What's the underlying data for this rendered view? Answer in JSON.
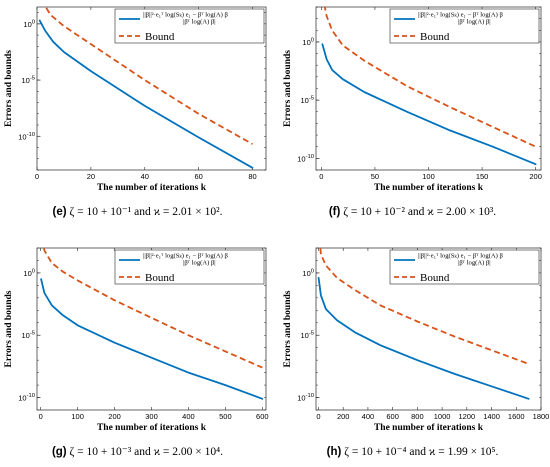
{
  "chart_data": [
    {
      "type": "line",
      "panel": "(e)",
      "caption_label": "(e)",
      "caption_text": "ζ = 10 + 10⁻¹ and ϰ = 2.01 × 10².",
      "xlabel": "The number of iterations k",
      "ylabel": "Errors and bounds",
      "xlim": [
        0,
        85
      ],
      "xticks": [
        0,
        20,
        40,
        60,
        80
      ],
      "ylim_log10": [
        -13,
        1.5
      ],
      "yscale": "log",
      "yticks_log10": [
        0,
        -5,
        -10
      ],
      "ytick_labels": [
        "10^0",
        "10^-5",
        "10^-10"
      ],
      "legend": {
        "position": "top-right",
        "entries": [
          "||β||²·e₁ᵀ log(Sₖ) e₁ − βᵀ log(A) β / |βᵀ log(A) β|",
          "Bound"
        ]
      },
      "series": [
        {
          "name": "||β||²·e₁ᵀ log(Sₖ) e₁ − βᵀ log(A) β / |βᵀ log(A) β|",
          "color": "#0072BD",
          "style": "solid",
          "x": [
            1,
            3,
            6,
            10,
            20,
            40,
            60,
            80
          ],
          "y_log10": [
            0.3,
            -0.6,
            -1.6,
            -2.5,
            -4.2,
            -7.3,
            -10.1,
            -12.8
          ]
        },
        {
          "name": "Bound",
          "color": "#D95319",
          "style": "dashed",
          "x": [
            1,
            3,
            5,
            10,
            20,
            40,
            60,
            80
          ],
          "y_log10": [
            3.0,
            1.6,
            0.8,
            -0.2,
            -1.8,
            -5.0,
            -8.0,
            -10.7
          ]
        }
      ]
    },
    {
      "type": "line",
      "panel": "(f)",
      "caption_label": "(f)",
      "caption_text": "ζ = 10 + 10⁻² and ϰ = 2.00 × 10³.",
      "xlabel": "The number of iterations k",
      "ylabel": "Errors and bounds",
      "xlim": [
        -5,
        205
      ],
      "xticks": [
        0,
        50,
        100,
        150,
        200
      ],
      "ylim_log10": [
        -11,
        3
      ],
      "yscale": "log",
      "yticks_log10": [
        0,
        -5,
        -10
      ],
      "ytick_labels": [
        "10^0",
        "10^-5",
        "10^-10"
      ],
      "legend": {
        "position": "top-right",
        "entries": [
          "||β||²·e₁ᵀ log(Sₖ) e₁ − βᵀ log(A) β / |βᵀ log(A) β|",
          "Bound"
        ]
      },
      "series": [
        {
          "name": "||β||²·e₁ᵀ log(Sₖ) e₁ − βᵀ log(A) β / |βᵀ log(A) β|",
          "color": "#0072BD",
          "style": "solid",
          "x": [
            1,
            5,
            10,
            20,
            40,
            80,
            120,
            160,
            200
          ],
          "y_log10": [
            -0.2,
            -1.5,
            -2.4,
            -3.2,
            -4.3,
            -6.0,
            -7.6,
            -9.0,
            -10.5
          ]
        },
        {
          "name": "Bound",
          "color": "#D95319",
          "style": "dashed",
          "x": [
            1,
            5,
            10,
            20,
            40,
            80,
            120,
            160,
            200
          ],
          "y_log10": [
            4.0,
            2.2,
            1.0,
            -0.3,
            -1.6,
            -3.8,
            -5.6,
            -7.3,
            -9.0
          ]
        }
      ]
    },
    {
      "type": "line",
      "panel": "(g)",
      "caption_label": "(g)",
      "caption_text": "ζ = 10 + 10⁻³ and ϰ = 2.00 × 10⁴.",
      "xlabel": "The number of iterations k",
      "ylabel": "Errors and bounds",
      "xlim": [
        -10,
        610
      ],
      "xticks": [
        0,
        100,
        200,
        300,
        400,
        500,
        600
      ],
      "ylim_log10": [
        -11,
        2
      ],
      "yscale": "log",
      "yticks_log10": [
        0,
        -5,
        -10
      ],
      "ytick_labels": [
        "10^0",
        "10^-5",
        "10^-10"
      ],
      "legend": {
        "position": "top-right",
        "entries": [
          "||β||²·e₁ᵀ log(Sₖ) e₁ − βᵀ log(A) β / |βᵀ log(A) β|",
          "Bound"
        ]
      },
      "series": [
        {
          "name": "||β||²·e₁ᵀ log(Sₖ) e₁ − βᵀ log(A) β / |βᵀ log(A) β|",
          "color": "#0072BD",
          "style": "solid",
          "x": [
            1,
            10,
            30,
            60,
            100,
            200,
            300,
            400,
            500,
            600
          ],
          "y_log10": [
            -0.5,
            -1.6,
            -2.6,
            -3.4,
            -4.2,
            -5.6,
            -6.8,
            -8.0,
            -9.0,
            -10.1
          ]
        },
        {
          "name": "Bound",
          "color": "#D95319",
          "style": "dashed",
          "x": [
            1,
            10,
            30,
            60,
            100,
            200,
            300,
            400,
            500,
            600
          ],
          "y_log10": [
            3.5,
            1.8,
            0.8,
            0.1,
            -0.6,
            -2.2,
            -3.6,
            -5.0,
            -6.3,
            -7.6
          ]
        }
      ]
    },
    {
      "type": "line",
      "panel": "(h)",
      "caption_label": "(h)",
      "caption_text": "ζ = 10 + 10⁻⁴ and ϰ = 1.99 × 10⁵.",
      "xlabel": "The number of iterations k",
      "ylabel": "Errors and bounds",
      "xlim": [
        -20,
        1800
      ],
      "xticks": [
        0,
        200,
        400,
        600,
        800,
        1000,
        1200,
        1400,
        1600,
        1800
      ],
      "ylim_log10": [
        -11,
        2
      ],
      "yscale": "log",
      "yticks_log10": [
        0,
        -5,
        -10
      ],
      "ytick_labels": [
        "10^0",
        "10^-5",
        "10^-10"
      ],
      "legend": {
        "position": "top-right",
        "entries": [
          "||β||²·e₁ᵀ log(Sₖ) e₁ − βᵀ log(A) β / |βᵀ log(A) β|",
          "Bound"
        ]
      },
      "series": [
        {
          "name": "||β||²·e₁ᵀ log(Sₖ) e₁ − βᵀ log(A) β / |βᵀ log(A) β|",
          "color": "#0072BD",
          "style": "solid",
          "x": [
            1,
            20,
            60,
            150,
            300,
            500,
            800,
            1100,
            1400,
            1700
          ],
          "y_log10": [
            -0.4,
            -1.8,
            -2.9,
            -3.8,
            -4.8,
            -5.8,
            -7.0,
            -8.1,
            -9.1,
            -10.1
          ]
        },
        {
          "name": "Bound",
          "color": "#D95319",
          "style": "dashed",
          "x": [
            1,
            20,
            60,
            150,
            300,
            500,
            800,
            1100,
            1400,
            1700
          ],
          "y_log10": [
            3.5,
            1.5,
            0.6,
            -0.4,
            -1.4,
            -2.6,
            -3.9,
            -5.1,
            -6.2,
            -7.3
          ]
        }
      ]
    }
  ]
}
